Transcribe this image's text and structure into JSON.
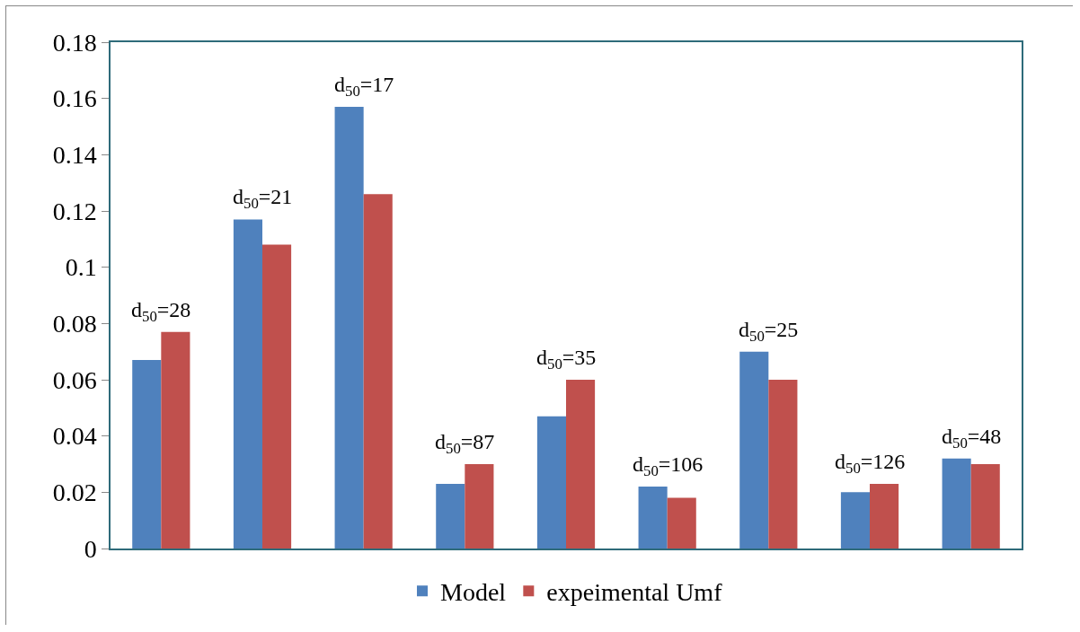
{
  "chart_data": {
    "type": "bar",
    "categories": [
      null,
      null,
      null,
      null,
      null,
      null,
      null,
      null,
      null
    ],
    "series": [
      {
        "name": "Model",
        "color": "#4f81bd",
        "values": [
          0.067,
          0.117,
          0.157,
          0.023,
          0.047,
          0.022,
          0.07,
          0.02,
          0.032
        ]
      },
      {
        "name": "expeimental Umf",
        "color": "#c0504d",
        "values": [
          0.077,
          0.108,
          0.126,
          0.03,
          0.06,
          0.018,
          0.06,
          0.023,
          0.03
        ]
      }
    ],
    "ylim": [
      0,
      0.18
    ],
    "yticks": [
      0,
      0.02,
      0.04,
      0.06,
      0.08,
      0.1,
      0.12,
      0.14,
      0.16,
      0.18
    ],
    "annotations": [
      "d$_{50}$=28",
      "d$_{50}$=21",
      "d$_{50}$=17",
      "d$_{50}$=87",
      "d$_{50}$=35",
      "d$_{50}$=106",
      "d$_{50}$=25",
      "d$_{50}$=126",
      "d$_{50}$=48"
    ],
    "grid": false,
    "legend": "bottom"
  }
}
